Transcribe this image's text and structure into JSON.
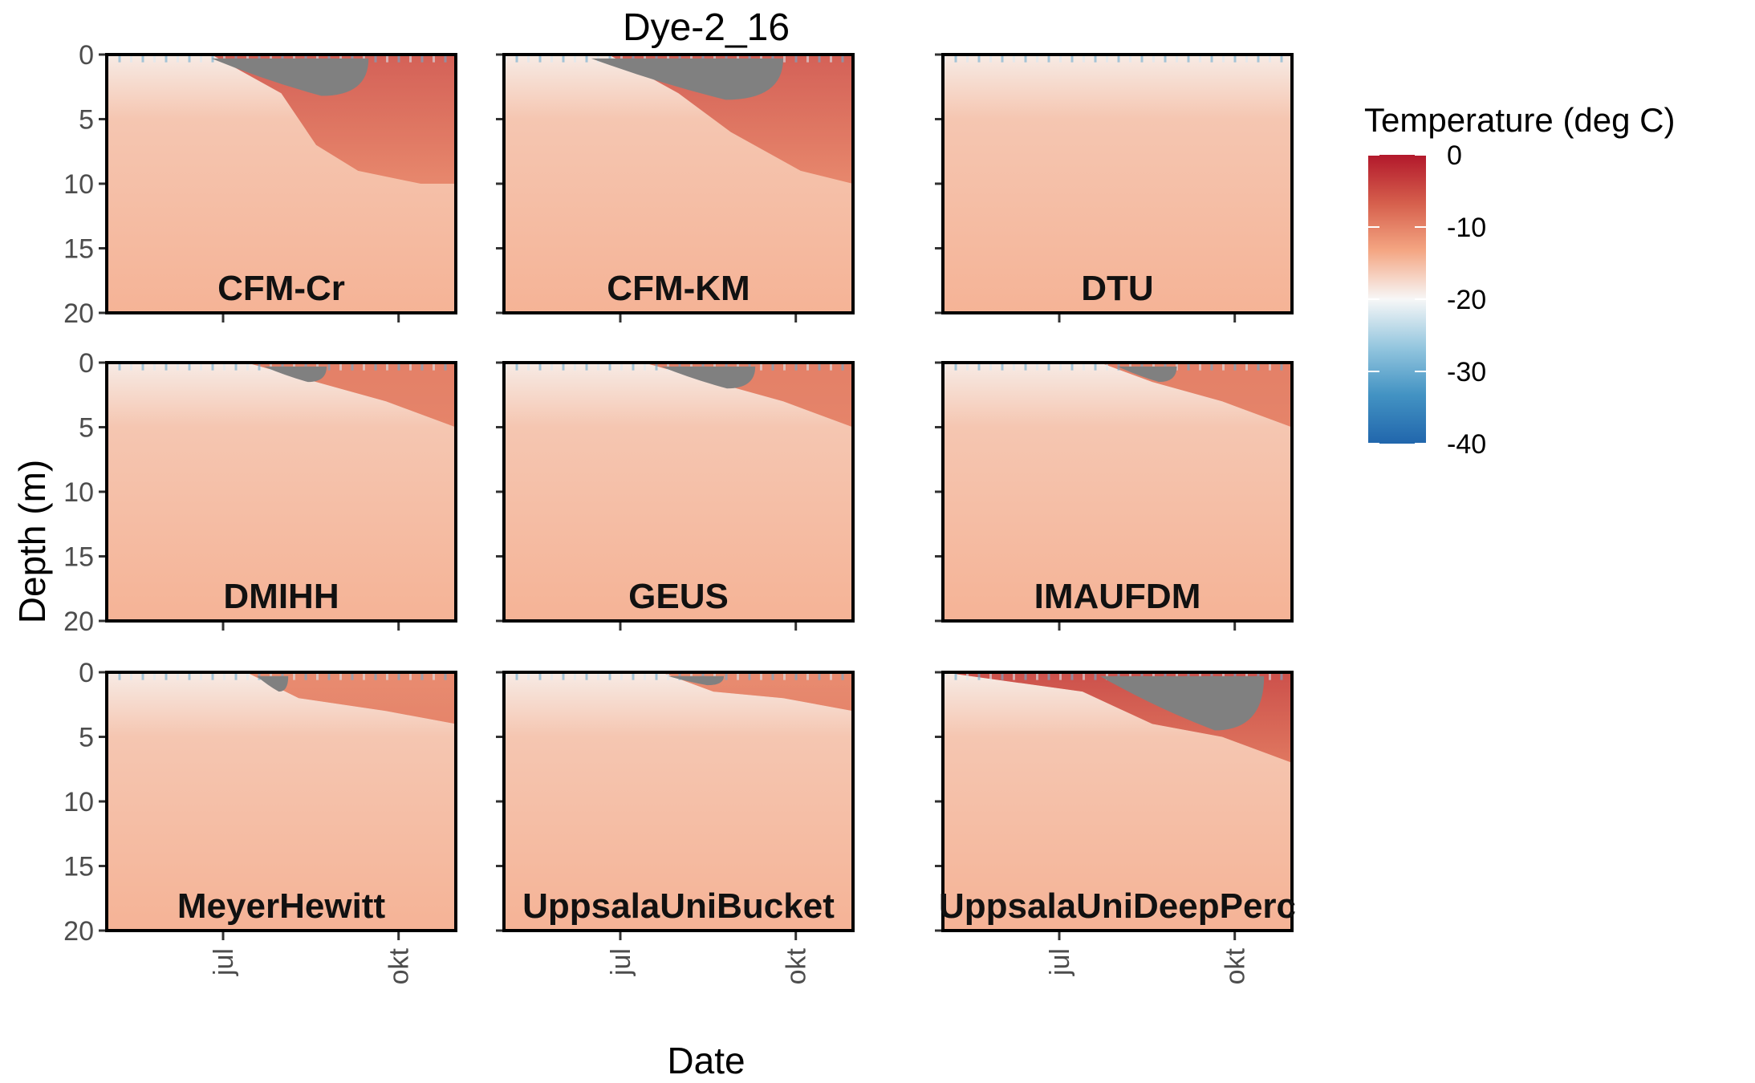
{
  "chart_data": {
    "type": "heatmap",
    "title": "Dye-2_16",
    "xlabel": "Date",
    "ylabel": "Depth (m)",
    "x_ticks": [
      "jul",
      "okt"
    ],
    "x_range": [
      "2016-05-01",
      "2016-10-31"
    ],
    "y_ticks": [
      0,
      5,
      10,
      15,
      20
    ],
    "y_range": [
      0,
      20
    ],
    "y_reversed": true,
    "legend": {
      "title": "Temperature (deg C)",
      "ticks": [
        0,
        -10,
        -20,
        -30,
        -40
      ],
      "range": [
        -40,
        0
      ],
      "colormap": "RdBu",
      "colors": [
        "#b2182b",
        "#d6604d",
        "#f4a582",
        "#f7f7f7",
        "#92c5de",
        "#4393c3",
        "#2166ac"
      ],
      "no_data_color": "#808080",
      "placement": "right"
    },
    "panels": [
      {
        "name": "CFM-Cr",
        "warm_zone": [
          [
            0.3,
            0,
            -12
          ],
          [
            0.5,
            3,
            -6
          ],
          [
            0.6,
            7,
            -3
          ],
          [
            0.72,
            9,
            -2
          ],
          [
            0.9,
            10,
            -2
          ],
          [
            1.0,
            10,
            -2
          ]
        ],
        "melt_zone": {
          "t_start": 0.3,
          "t_end": 0.75,
          "depth_max": 3.2
        }
      },
      {
        "name": "CFM-KM",
        "warm_zone": [
          [
            0.3,
            0,
            -12
          ],
          [
            0.5,
            3,
            -6
          ],
          [
            0.65,
            6,
            -3
          ],
          [
            0.85,
            9,
            -2
          ],
          [
            1.0,
            10,
            -2
          ]
        ],
        "melt_zone": {
          "t_start": 0.25,
          "t_end": 0.8,
          "depth_max": 3.5
        }
      },
      {
        "name": "DTU",
        "warm_zone": [],
        "melt_zone": null
      },
      {
        "name": "DMIHH",
        "warm_zone": [
          [
            0.4,
            0,
            -11
          ],
          [
            0.6,
            1.5,
            -6
          ],
          [
            0.8,
            3,
            -6
          ],
          [
            1.0,
            5,
            -8
          ]
        ],
        "melt_zone": {
          "t_start": 0.45,
          "t_end": 0.63,
          "depth_max": 1.5
        }
      },
      {
        "name": "GEUS",
        "warm_zone": [
          [
            0.4,
            0,
            -11
          ],
          [
            0.6,
            1.5,
            -6
          ],
          [
            0.8,
            3,
            -6
          ],
          [
            1.0,
            5,
            -8
          ]
        ],
        "melt_zone": {
          "t_start": 0.45,
          "t_end": 0.72,
          "depth_max": 2.0
        }
      },
      {
        "name": "IMAUFDM",
        "warm_zone": [
          [
            0.45,
            0,
            -11
          ],
          [
            0.6,
            1.5,
            -6
          ],
          [
            0.8,
            3,
            -6
          ],
          [
            1.0,
            5,
            -8
          ]
        ],
        "melt_zone": {
          "t_start": 0.5,
          "t_end": 0.67,
          "depth_max": 1.5
        }
      },
      {
        "name": "MeyerHewitt",
        "warm_zone": [
          [
            0.4,
            0,
            -11
          ],
          [
            0.55,
            2,
            -7
          ],
          [
            0.8,
            3,
            -8
          ],
          [
            1.0,
            4,
            -10
          ]
        ],
        "melt_zone": {
          "t_start": 0.43,
          "t_end": 0.52,
          "depth_max": 1.5
        }
      },
      {
        "name": "UppsalaUniBucket",
        "warm_zone": [
          [
            0.45,
            0,
            -11
          ],
          [
            0.6,
            1.5,
            -7
          ],
          [
            0.8,
            2,
            -8
          ],
          [
            1.0,
            3,
            -10
          ]
        ],
        "melt_zone": {
          "t_start": 0.47,
          "t_end": 0.63,
          "depth_max": 1.0
        }
      },
      {
        "name": "UppsalaUniDeepPerc",
        "warm_zone": [
          [
            0.0,
            0,
            -8
          ],
          [
            0.4,
            1.5,
            -3
          ],
          [
            0.6,
            4,
            -2
          ],
          [
            0.8,
            5,
            -2
          ],
          [
            1.0,
            7,
            -2
          ]
        ],
        "melt_zone": {
          "t_start": 0.45,
          "t_end": 0.92,
          "depth_max": 4.5
        }
      }
    ]
  }
}
